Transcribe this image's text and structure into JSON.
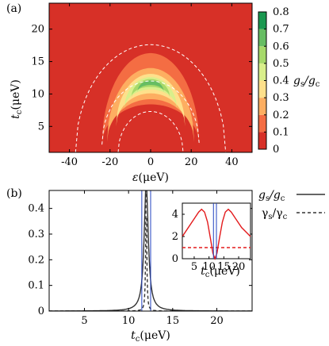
{
  "chart_data": [
    {
      "panel": "(a)",
      "type": "heatmap",
      "xlabel": "ε(μeV)",
      "ylabel": "t_c(μeV)",
      "colorbar_label": "g_s/g_c",
      "xlim": [
        -50,
        50
      ],
      "ylim": [
        1,
        24
      ],
      "xticks": [
        "-40",
        "-20",
        "0",
        "20",
        "40"
      ],
      "yticks": [
        "5",
        "10",
        "15",
        "20"
      ],
      "colorbar_ticks": [
        "0",
        "0.1",
        "0.2",
        "0.3",
        "0.4",
        "0.5",
        "0.6",
        "0.7",
        "0.8"
      ],
      "colorbar_range": [
        0,
        0.8
      ],
      "level_colors": [
        "#d73027",
        "#f46d43",
        "#fdae61",
        "#fee08b",
        "#d9ef8b",
        "#a6d96a",
        "#66bd63",
        "#1a9850"
      ],
      "arch_levels": [
        {
          "level": 0.1,
          "half_width": 24,
          "peak_tc": 16.3,
          "base_tc": 2.2,
          "inner_half_width": 24,
          "inner_peak_tc": 8.4
        },
        {
          "level": 0.2,
          "half_width": 21.5,
          "peak_tc": 14.0,
          "base_tc": 2.6,
          "inner_half_width": 21.5,
          "inner_peak_tc": 9.2
        },
        {
          "level": 0.3,
          "half_width": 17,
          "peak_tc": 13.1,
          "base_tc": 5.0,
          "inner_half_width": 17,
          "inner_peak_tc": 10.1
        },
        {
          "level": 0.4,
          "half_width": 13,
          "peak_tc": 12.6,
          "base_tc": 7.6,
          "inner_half_width": 13,
          "inner_peak_tc": 10.7
        },
        {
          "level": 0.5,
          "half_width": 9.5,
          "peak_tc": 12.3,
          "base_tc": 9.4,
          "inner_half_width": 9.5,
          "inner_peak_tc": 11.1
        },
        {
          "level": 0.6,
          "half_width": 6.5,
          "peak_tc": 12.1,
          "base_tc": 10.3,
          "inner_half_width": 6.5,
          "inner_peak_tc": 11.4
        }
      ],
      "center_dashed": {
        "half_width": 24,
        "peak_tc": 12.0,
        "base_tc": 2.2
      },
      "outer_dashed": {
        "half_width": 37,
        "peak_tc": 17.6,
        "base_tc": 1.0
      },
      "inner_dashed": {
        "half_width": 16,
        "peak_tc": 7.3,
        "base_tc": 1.0
      }
    },
    {
      "panel": "(b)",
      "type": "line",
      "xlabel": "t_c(μeV)",
      "xlim": [
        1,
        24
      ],
      "ylim": [
        0,
        0.47
      ],
      "xticks": [
        "5",
        "10",
        "15",
        "20"
      ],
      "yticks": [
        "0",
        "0.1",
        "0.2",
        "0.3",
        "0.4"
      ],
      "resonance_tc": 12,
      "vlines_tc": [
        11.5,
        12.5
      ],
      "series": [
        {
          "name": "g_s/g_c",
          "style": "solid",
          "color": "#333333",
          "amplitude": 0.5,
          "gamma": 0.56
        },
        {
          "name": "γ_s/γ_c",
          "style": "dashed",
          "color": "#333333",
          "amplitude": 0.5,
          "gamma": 0.13
        }
      ],
      "inset": {
        "type": "line",
        "xlabel": "t_c(μeV)",
        "xlim": [
          1,
          24
        ],
        "ylim": [
          0,
          5
        ],
        "xticks": [
          "5",
          "10",
          "15",
          "20"
        ],
        "yticks": [
          "0",
          "2",
          "4"
        ],
        "vlines_tc": [
          11.5,
          12.5
        ],
        "series": [
          {
            "style": "solid",
            "color": "#e31a1c",
            "points": [
              [
                1,
                2.0
              ],
              [
                3,
                2.8
              ],
              [
                5,
                3.6
              ],
              [
                6.5,
                4.2
              ],
              [
                7.5,
                4.45
              ],
              [
                8.5,
                4.2
              ],
              [
                9.5,
                3.3
              ],
              [
                10.5,
                1.8
              ],
              [
                11.3,
                0.5
              ],
              [
                12,
                0
              ],
              [
                12.7,
                0.5
              ],
              [
                13.5,
                1.8
              ],
              [
                14.5,
                3.3
              ],
              [
                15.5,
                4.2
              ],
              [
                16.5,
                4.45
              ],
              [
                17.5,
                4.2
              ],
              [
                19,
                3.6
              ],
              [
                21,
                2.8
              ],
              [
                24,
                2.0
              ]
            ]
          },
          {
            "style": "dashed",
            "color": "#e31a1c",
            "points": [
              [
                1,
                1.0
              ],
              [
                24,
                1.0
              ]
            ]
          }
        ]
      }
    }
  ],
  "labels": {
    "panel_a": "(a)",
    "panel_b": "(b)",
    "a_x_eps": "ε",
    "a_x_unit": "(μeV)",
    "a_y_t": "t",
    "a_y_sub": "c",
    "a_y_unit": "(μeV)",
    "cb_label_g": "g",
    "cb_label_s": "s",
    "cb_label_slash": "/g",
    "cb_label_c": "c",
    "b_x_t": "t",
    "b_x_sub": "c",
    "b_x_unit": "(μeV)",
    "inset_x_t": "t",
    "inset_x_sub": "c",
    "inset_x_unit": "(μeV)",
    "legend_g": "g",
    "legend_g_s": "s",
    "legend_g_rest": "/g",
    "legend_g_c": "c",
    "legend_gamma": "γ",
    "legend_gamma_s": "s",
    "legend_gamma_rest": "/γ",
    "legend_gamma_c": "c"
  }
}
